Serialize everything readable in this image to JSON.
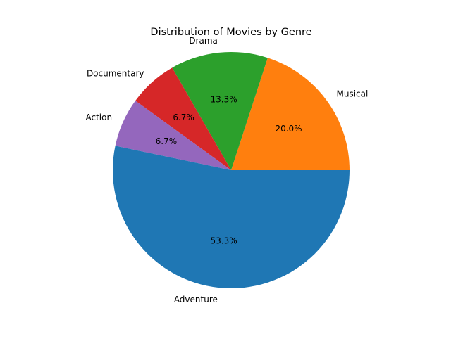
{
  "chart_data": {
    "type": "pie",
    "title": "Distribution of Movies by Genre",
    "start_angle_deg": 0,
    "direction": "counterclockwise",
    "slices": [
      {
        "label": "Musical",
        "value": 20.0,
        "pct_text": "20.0%",
        "color": "#ff7f0e"
      },
      {
        "label": "Drama",
        "value": 13.3,
        "pct_text": "13.3%",
        "color": "#2ca02c"
      },
      {
        "label": "Documentary",
        "value": 6.7,
        "pct_text": "6.7%",
        "color": "#d62728"
      },
      {
        "label": "Action",
        "value": 6.7,
        "pct_text": "6.7%",
        "color": "#9467bd"
      },
      {
        "label": "Adventure",
        "value": 53.3,
        "pct_text": "53.3%",
        "color": "#1f77b4"
      }
    ]
  }
}
